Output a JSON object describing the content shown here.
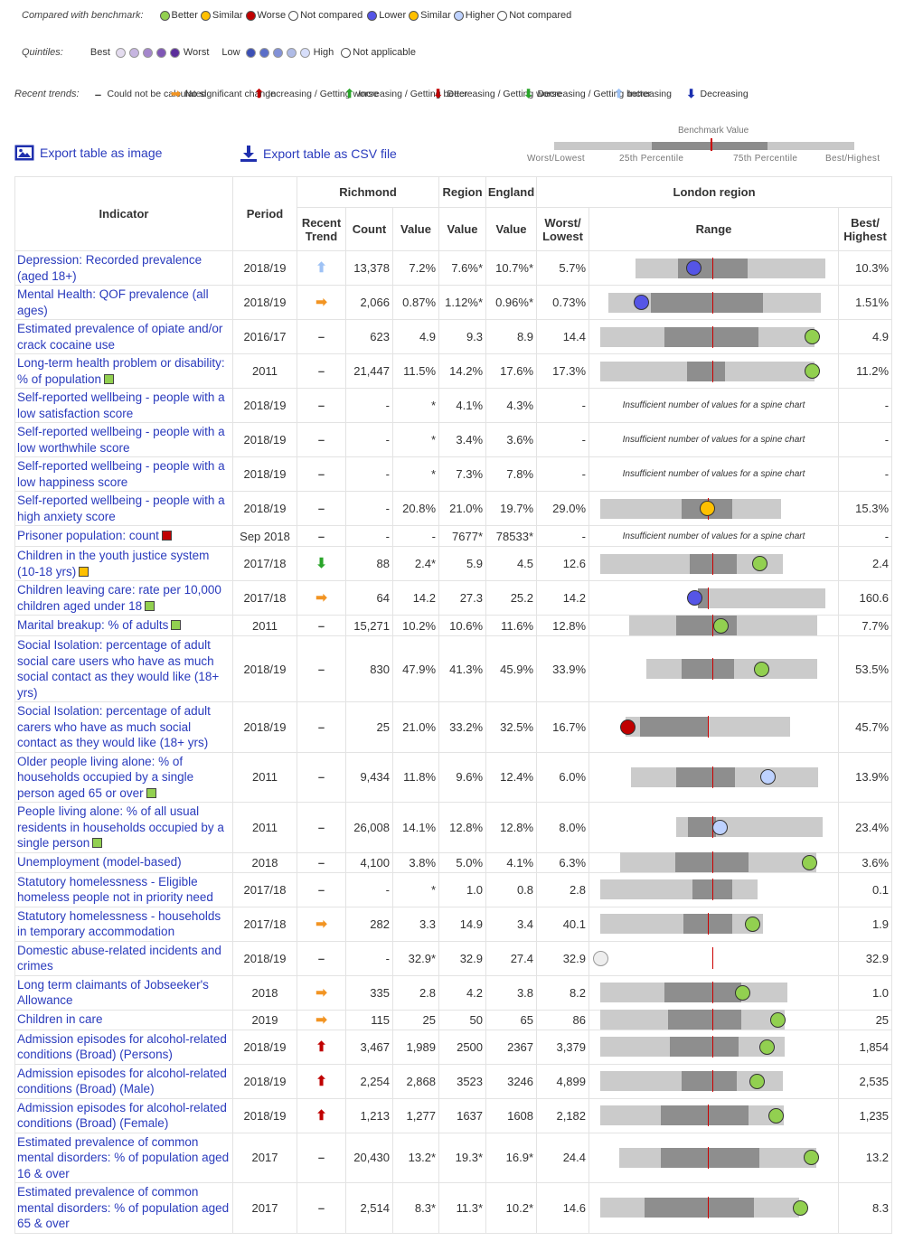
{
  "legend": {
    "benchmark": {
      "label": "Compared with benchmark:",
      "items": [
        {
          "label": "Better",
          "color": "#92d050"
        },
        {
          "label": "Similar",
          "color": "#ffc000"
        },
        {
          "label": "Worse",
          "color": "#c00000"
        },
        {
          "label": "Not compared",
          "color": "#ffffff"
        },
        {
          "label": "Lower",
          "color": "#5555e6"
        },
        {
          "label": "Similar",
          "color": "#ffc000"
        },
        {
          "label": "Higher",
          "color": "#bed2ff"
        },
        {
          "label": "Not compared",
          "color": "#ffffff"
        }
      ]
    },
    "quintiles": {
      "label": "Quintiles:",
      "best": "Best",
      "worst": "Worst",
      "low": "Low",
      "high": "High",
      "not_applicable": "Not applicable",
      "purple": [
        "#e4dcef",
        "#c6b5e0",
        "#a486cc",
        "#7f57b5",
        "#5b2e9b"
      ],
      "blue": [
        "#3c50b4",
        "#5a6ec8",
        "#8291d7",
        "#afbbe6",
        "#d7defa"
      ]
    },
    "trends": {
      "label": "Recent trends:",
      "items": [
        {
          "text": "Could not be calculated",
          "icon": "dash-icon"
        },
        {
          "text": "No significant change",
          "icon": "right-arrow-icon"
        },
        {
          "text": "Increasing / Getting worse",
          "icon": "up-arrow-icon"
        },
        {
          "text": "Increasing / Getting better",
          "icon": "up-arrow-icon"
        },
        {
          "text": "Decreasing / Getting worse",
          "icon": "down-arrow-icon"
        },
        {
          "text": "Decreasing / Getting better",
          "icon": "down-arrow-icon"
        },
        {
          "text": "Increasing",
          "icon": "up-arrow-icon"
        },
        {
          "text": "Decreasing",
          "icon": "down-arrow-icon"
        }
      ]
    }
  },
  "exports": {
    "image": "Export table as image",
    "csv": "Export table as CSV file"
  },
  "benchmark_key": {
    "title": "Benchmark Value",
    "worst": "Worst/Lowest",
    "p25": "25th Percentile",
    "p75": "75th Percentile",
    "best": "Best/Highest"
  },
  "headers": {
    "indicator": "Indicator",
    "period": "Period",
    "richmond": "Richmond",
    "region": "Region",
    "england": "England",
    "london": "London region",
    "recent_trend": "Recent Trend",
    "count": "Count",
    "value": "Value",
    "region_value": "Value",
    "england_value": "Value",
    "worst": "Worst/ Lowest",
    "range": "Range",
    "best": "Best/ Highest"
  },
  "insufficient_text": "Insufficient number of values for a spine chart",
  "colors": {
    "better": "#92d050",
    "similar": "#ffc000",
    "worse": "#c00000",
    "lower": "#5555e6",
    "higher": "#bed2ff",
    "notcompared": "#eeeeee",
    "trend_orange": "#f29422",
    "trend_red": "#c00000",
    "trend_green": "#2aa52a",
    "trend_lightblue": "#9ec2f5",
    "trend_navy": "#1a2fb0",
    "link": "#2a3bbd"
  },
  "rows": [
    {
      "indicator": "Depression: Recorded prevalence (aged 18+)",
      "sq": null,
      "period": "2018/19",
      "trend": "increasing",
      "count": "13,378",
      "value": "7.2%",
      "region": "7.6%*",
      "england": "10.7%*",
      "worst": "5.7%",
      "best": "10.3%",
      "spine": {
        "full": [
          0.143,
          0.985
        ],
        "mid": [
          0.345,
          0.655
        ],
        "bench": 0.498,
        "dot": 0.417,
        "dotc": "lower"
      }
    },
    {
      "indicator": "Mental Health: QOF prevalence (all ages)",
      "sq": null,
      "period": "2018/19",
      "trend": "nochange",
      "count": "2,066",
      "value": "0.87%",
      "region": "1.12%*",
      "england": "0.96%*",
      "worst": "0.73%",
      "best": "1.51%",
      "spine": {
        "full": [
          0.032,
          0.977
        ],
        "mid": [
          0.226,
          0.726
        ],
        "bench": 0.498,
        "dot": 0.184,
        "dotc": "lower"
      }
    },
    {
      "indicator": "Estimated prevalence of opiate and/or crack cocaine use",
      "sq": null,
      "period": "2016/17",
      "trend": "dash",
      "count": "623",
      "value": "4.9",
      "region": "9.3",
      "england": "8.9",
      "worst": "14.4",
      "best": "4.9",
      "spine": {
        "full": [
          0.0,
          0.955
        ],
        "mid": [
          0.286,
          0.703
        ],
        "bench": 0.498,
        "dot": 0.945,
        "dotc": "better"
      }
    },
    {
      "indicator": "Long-term health problem or disability: % of population",
      "sq": "better",
      "period": "2011",
      "trend": "dash",
      "count": "21,447",
      "value": "11.5%",
      "region": "14.2%",
      "england": "17.6%",
      "worst": "17.3%",
      "best": "11.2%",
      "spine": {
        "full": [
          0.0,
          0.955
        ],
        "mid": [
          0.387,
          0.556
        ],
        "bench": 0.498,
        "dot": 0.945,
        "dotc": "better"
      }
    },
    {
      "indicator": "Self-reported wellbeing - people with a low satisfaction score",
      "sq": null,
      "period": "2018/19",
      "trend": "dash",
      "count": "-",
      "value": "*",
      "region": "4.1%",
      "england": "4.3%",
      "worst": "-",
      "best": "-",
      "spine": null
    },
    {
      "indicator": "Self-reported wellbeing - people with a low worthwhile score",
      "sq": null,
      "period": "2018/19",
      "trend": "dash",
      "count": "-",
      "value": "*",
      "region": "3.4%",
      "england": "3.6%",
      "worst": "-",
      "best": "-",
      "spine": null
    },
    {
      "indicator": "Self-reported wellbeing - people with a low happiness score",
      "sq": null,
      "period": "2018/19",
      "trend": "dash",
      "count": "-",
      "value": "*",
      "region": "7.3%",
      "england": "7.8%",
      "worst": "-",
      "best": "-",
      "spine": null
    },
    {
      "indicator": "Self-reported wellbeing - people with a high anxiety score",
      "sq": null,
      "period": "2018/19",
      "trend": "dash",
      "count": "-",
      "value": "20.8%",
      "region": "21.0%",
      "england": "19.7%",
      "worst": "29.0%",
      "best": "15.3%",
      "spine": {
        "full": [
          0.0,
          0.806
        ],
        "mid": [
          0.361,
          0.586
        ],
        "bench": 0.478,
        "dot": 0.477,
        "dotc": "similar"
      }
    },
    {
      "indicator": "Prisoner population: count",
      "sq": "worse",
      "period": "Sep 2018",
      "trend": "dash",
      "count": "-",
      "value": "-",
      "region": "7677*",
      "england": "78533*",
      "worst": "-",
      "best": "-",
      "spine": null
    },
    {
      "indicator": "Children in the youth justice system (10-18 yrs)",
      "sq": "similar",
      "period": "2017/18",
      "trend": "decreasing_better",
      "count": "88",
      "value": "2.4*",
      "region": "5.9",
      "england": "4.5",
      "worst": "12.6",
      "best": "2.4",
      "spine": {
        "full": [
          0.0,
          0.813
        ],
        "mid": [
          0.398,
          0.609
        ],
        "bench": 0.498,
        "dot": 0.71,
        "dotc": "better"
      }
    },
    {
      "indicator": "Children leaving care: rate per 10,000 children aged under 18",
      "sq": "better",
      "period": "2017/18",
      "trend": "nochange",
      "count": "64",
      "value": "14.2",
      "region": "27.3",
      "england": "25.2",
      "worst": "14.2",
      "best": "160.6",
      "spine": {
        "full": [
          0.414,
          0.955
        ],
        "mid": [
          0.436,
          0.485
        ],
        "bench": 0.478,
        "dot": 0.421,
        "dotc": "lower"
      }
    },
    {
      "indicator": "Marital breakup: % of adults",
      "sq": "better",
      "period": "2011",
      "trend": "dash",
      "count": "15,271",
      "value": "10.2%",
      "region": "10.6%",
      "england": "11.6%",
      "worst": "12.8%",
      "best": "7.7%",
      "spine": {
        "full": [
          0.117,
          0.955
        ],
        "mid": [
          0.34,
          0.609
        ],
        "bench": 0.498,
        "dot": 0.538,
        "dotc": "better"
      }
    },
    {
      "indicator": "Social Isolation: percentage of adult social care users who have as much social contact as they would like (18+ yrs)",
      "sq": null,
      "period": "2018/19",
      "trend": "dash",
      "count": "830",
      "value": "47.9%",
      "region": "41.3%",
      "england": "45.9%",
      "worst": "33.9%",
      "best": "53.5%",
      "spine": {
        "full": [
          0.184,
          0.944
        ],
        "mid": [
          0.361,
          0.594
        ],
        "bench": 0.498,
        "dot": 0.718,
        "dotc": "better"
      }
    },
    {
      "indicator": "Social Isolation: percentage of adult carers who have as much social contact as they would like (18+ yrs)",
      "sq": null,
      "period": "2018/19",
      "trend": "dash",
      "count": "25",
      "value": "21.0%",
      "region": "33.2%",
      "england": "32.5%",
      "worst": "16.7%",
      "best": "45.7%",
      "spine": {
        "full": [
          0.102,
          0.836
        ],
        "mid": [
          0.177,
          0.485
        ],
        "bench": 0.478,
        "dot": 0.123,
        "dotc": "worse"
      }
    },
    {
      "indicator": "Older people living alone: % of households occupied by a single person aged 65 or over",
      "sq": "better",
      "period": "2011",
      "trend": "dash",
      "count": "9,434",
      "value": "11.8%",
      "region": "9.6%",
      "england": "12.4%",
      "worst": "6.0%",
      "best": "13.9%",
      "spine": {
        "full": [
          0.124,
          0.955
        ],
        "mid": [
          0.34,
          0.601
        ],
        "bench": 0.498,
        "dot": 0.748,
        "dotc": "higher"
      }
    },
    {
      "indicator": "People living alone: % of all usual residents in households occupied by a single person",
      "sq": "better",
      "period": "2011",
      "trend": "dash",
      "count": "26,008",
      "value": "14.1%",
      "region": "12.8%",
      "england": "12.8%",
      "worst": "8.0%",
      "best": "23.4%",
      "spine": {
        "full": [
          0.304,
          0.955
        ],
        "mid": [
          0.391,
          0.515
        ],
        "bench": 0.498,
        "dot": 0.534,
        "dotc": "higher"
      }
    },
    {
      "indicator": "Unemployment (model-based)",
      "sq": null,
      "period": "2018",
      "trend": "dash",
      "count": "4,100",
      "value": "3.8%",
      "region": "5.0%",
      "england": "4.1%",
      "worst": "6.3%",
      "best": "3.6%",
      "spine": {
        "full": [
          0.079,
          0.955
        ],
        "mid": [
          0.334,
          0.662
        ],
        "bench": 0.498,
        "dot": 0.931,
        "dotc": "better"
      }
    },
    {
      "indicator": "Statutory homelessness - Eligible homeless people not in priority need",
      "sq": null,
      "period": "2017/18",
      "trend": "dash",
      "count": "-",
      "value": "*",
      "region": "1.0",
      "england": "0.8",
      "worst": "2.8",
      "best": "0.1",
      "spine": {
        "full": [
          0.0,
          0.699
        ],
        "mid": [
          0.409,
          0.586
        ],
        "bench": 0.498,
        "dot": null,
        "dotc": null
      }
    },
    {
      "indicator": "Statutory homelessness - households in temporary accommodation",
      "sq": null,
      "period": "2017/18",
      "trend": "nochange",
      "count": "282",
      "value": "3.3",
      "region": "14.9",
      "england": "3.4",
      "worst": "40.1",
      "best": "1.9",
      "spine": {
        "full": [
          0.0,
          0.726
        ],
        "mid": [
          0.372,
          0.586
        ],
        "bench": 0.478,
        "dot": 0.68,
        "dotc": "better"
      }
    },
    {
      "indicator": "Domestic abuse-related incidents and crimes",
      "sq": null,
      "period": "2018/19",
      "trend": "dash",
      "count": "-",
      "value": "32.9*",
      "region": "32.9",
      "england": "27.4",
      "worst": "32.9",
      "best": "32.9",
      "spine": {
        "full": null,
        "mid": null,
        "bench": 0.498,
        "dot": 0.0,
        "dotc": "notcompared"
      }
    },
    {
      "indicator": "Long term claimants of Jobseeker's Allowance",
      "sq": null,
      "period": "2018",
      "trend": "nochange",
      "count": "335",
      "value": "2.8",
      "region": "4.2",
      "england": "3.8",
      "worst": "8.2",
      "best": "1.0",
      "spine": {
        "full": [
          0.0,
          0.833
        ],
        "mid": [
          0.286,
          0.627
        ],
        "bench": 0.498,
        "dot": 0.633,
        "dotc": "better"
      }
    },
    {
      "indicator": "Children in care",
      "sq": null,
      "period": "2019",
      "trend": "nochange",
      "count": "115",
      "value": "25",
      "region": "50",
      "england": "65",
      "worst": "86",
      "best": "25",
      "spine": {
        "full": [
          0.0,
          0.821
        ],
        "mid": [
          0.301,
          0.627
        ],
        "bench": 0.498,
        "dot": 0.79,
        "dotc": "better"
      }
    },
    {
      "indicator": "Admission episodes for alcohol-related conditions (Broad) (Persons)",
      "sq": null,
      "period": "2018/19",
      "trend": "increasing_worse",
      "count": "3,467",
      "value": "1,989",
      "region": "2500",
      "england": "2367",
      "worst": "3,379",
      "best": "1,854",
      "spine": {
        "full": [
          0.0,
          0.821
        ],
        "mid": [
          0.308,
          0.617
        ],
        "bench": 0.498,
        "dot": 0.742,
        "dotc": "better"
      }
    },
    {
      "indicator": "Admission episodes for alcohol-related conditions (Broad) (Male)",
      "sq": null,
      "period": "2018/19",
      "trend": "increasing_worse",
      "count": "2,254",
      "value": "2,868",
      "region": "3523",
      "england": "3246",
      "worst": "4,899",
      "best": "2,535",
      "spine": {
        "full": [
          0.0,
          0.813
        ],
        "mid": [
          0.361,
          0.609
        ],
        "bench": 0.498,
        "dot": 0.699,
        "dotc": "better"
      }
    },
    {
      "indicator": "Admission episodes for alcohol-related conditions (Broad) (Female)",
      "sq": null,
      "period": "2018/19",
      "trend": "increasing_worse",
      "count": "1,213",
      "value": "1,277",
      "region": "1637",
      "england": "1608",
      "worst": "2,182",
      "best": "1,235",
      "spine": {
        "full": [
          0.0,
          0.817
        ],
        "mid": [
          0.269,
          0.661
        ],
        "bench": 0.478,
        "dot": 0.782,
        "dotc": "better"
      }
    },
    {
      "indicator": "Estimated prevalence of common mental disorders: % of population aged 16 & over",
      "sq": null,
      "period": "2017",
      "trend": "dash",
      "count": "20,430",
      "value": "13.2*",
      "region": "19.3*",
      "england": "16.9*",
      "worst": "24.4",
      "best": "13.2",
      "spine": {
        "full": [
          0.075,
          0.955
        ],
        "mid": [
          0.268,
          0.707
        ],
        "bench": 0.478,
        "dot": 0.938,
        "dotc": "better"
      }
    },
    {
      "indicator": "Estimated prevalence of common mental disorders: % of population aged 65 & over",
      "sq": null,
      "period": "2017",
      "trend": "dash",
      "count": "2,514",
      "value": "8.3*",
      "region": "11.3*",
      "england": "10.2*",
      "worst": "14.6",
      "best": "8.3",
      "spine": {
        "full": [
          0.0,
          0.887
        ],
        "mid": [
          0.196,
          0.685
        ],
        "bench": 0.478,
        "dot": 0.89,
        "dotc": "better"
      }
    }
  ]
}
